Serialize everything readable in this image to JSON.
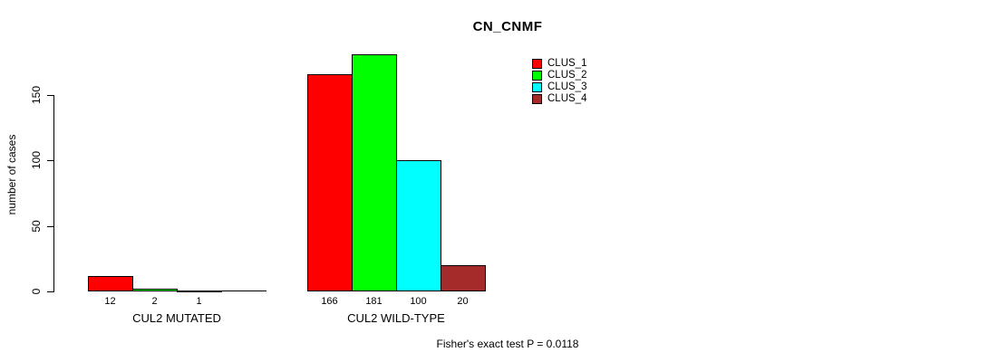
{
  "chart_data": {
    "type": "bar",
    "title": "CN_CNMF",
    "ylabel": "number of cases",
    "yticks": [
      0,
      50,
      100,
      150
    ],
    "ylim": [
      0,
      150
    ],
    "grid": false,
    "legend_position": "top-right",
    "categories": [
      "CUL2 MUTATED",
      "CUL2 WILD-TYPE"
    ],
    "series": [
      {
        "name": "CLUS_1",
        "color": "#ff0000",
        "values": [
          12,
          166
        ]
      },
      {
        "name": "CLUS_2",
        "color": "#00ff00",
        "values": [
          2,
          181
        ]
      },
      {
        "name": "CLUS_3",
        "color": "#00ffff",
        "values": [
          1,
          100
        ]
      },
      {
        "name": "CLUS_4",
        "color": "#a52a2a",
        "values": [
          0,
          20
        ]
      }
    ],
    "bar_value_labels": [
      [
        "12",
        "2",
        "1",
        ""
      ],
      [
        "166",
        "181",
        "100",
        "20"
      ]
    ],
    "axis_color": "#000000",
    "footer": "Fisher's exact test P = 0.0118"
  }
}
